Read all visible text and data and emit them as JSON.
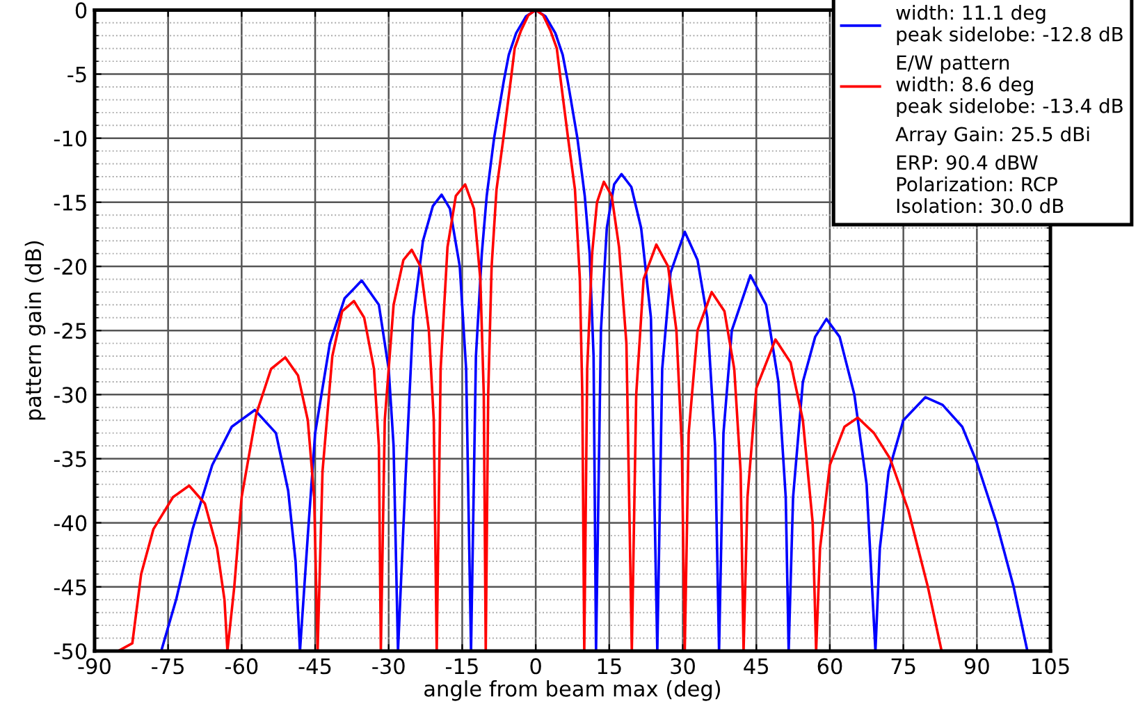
{
  "chart_data": {
    "type": "line",
    "xlabel": "angle from beam max (deg)",
    "ylabel": "pattern gain (dB)",
    "xlim": [
      -90,
      105
    ],
    "ylim": [
      -50,
      0
    ],
    "xticks": [
      -90,
      -75,
      -60,
      -45,
      -30,
      -15,
      0,
      15,
      30,
      45,
      60,
      75,
      90,
      105
    ],
    "yticks": [
      -50,
      -45,
      -40,
      -35,
      -30,
      -25,
      -20,
      -15,
      -10,
      -5,
      0
    ],
    "grid": true,
    "legend": "top right",
    "marker": "none",
    "line_style": "solid",
    "annotations": [
      "Array Gain: 25.5 dBi",
      "ERP: 90.4 dBW\nPolarization: RCP\nIsolation: 30.0 dB"
    ],
    "series": [
      {
        "name": "width: 11.1 deg\npeak sidelobe: -12.8 dB",
        "color": "#0000ff",
        "x": [
          -76.4,
          -73.3,
          -70,
          -66,
          -62,
          -57.3,
          -53,
          -50.5,
          -49,
          -48.1,
          -46.5,
          -45,
          -42,
          -39,
          -35.5,
          -32,
          -30,
          -29,
          -28.1,
          -26.5,
          -25,
          -23,
          -21,
          -19.2,
          -17.5,
          -15.5,
          -14.2,
          -13.2,
          -12.2,
          -11,
          -10,
          -8.5,
          -6.5,
          -5.5,
          -4,
          -2,
          0,
          2,
          4,
          5.5,
          6.5,
          8.5,
          10,
          11,
          11.8,
          12.3,
          13.3,
          14.5,
          16,
          17.5,
          19.5,
          21.5,
          23.5,
          24.8,
          25.8,
          27.5,
          30.4,
          33,
          35,
          36.6,
          37.4,
          38.3,
          40,
          43.8,
          47,
          49.5,
          51,
          51.6,
          52.5,
          54.5,
          57,
          59.3,
          62,
          65,
          67.5,
          69.3,
          70.2,
          72,
          75,
          79.5,
          83,
          87,
          90,
          94,
          97.5,
          100.3
        ],
        "values": [
          -50,
          -45.9,
          -40.5,
          -35.5,
          -32.5,
          -31.2,
          -33,
          -37.5,
          -43,
          -50,
          -41,
          -33,
          -26,
          -22.5,
          -21.1,
          -23,
          -28,
          -34,
          -50,
          -36,
          -24,
          -18,
          -15.3,
          -14.4,
          -15.5,
          -20,
          -28,
          -50,
          -27,
          -19,
          -14.5,
          -10,
          -5.5,
          -3.5,
          -1.8,
          -0.5,
          0,
          -0.5,
          -1.8,
          -3.5,
          -5.5,
          -10,
          -14.5,
          -19,
          -27,
          -50,
          -25,
          -17,
          -13.6,
          -12.8,
          -13.8,
          -17,
          -24,
          -50,
          -28,
          -20.5,
          -17.3,
          -19.5,
          -24,
          -34,
          -50,
          -33,
          -25,
          -20.7,
          -23,
          -29,
          -38,
          -50,
          -38,
          -29,
          -25.5,
          -24.1,
          -25.5,
          -30,
          -37,
          -50,
          -42,
          -36,
          -32,
          -30.2,
          -30.8,
          -32.5,
          -35.3,
          -40,
          -45,
          -50
        ]
      },
      {
        "name": "E/W pattern\nwidth: 8.6 deg\npeak sidelobe: -13.4 dB",
        "color": "#ff0000",
        "x": [
          -85.2,
          -82.3,
          -80.5,
          -78,
          -74,
          -70.7,
          -67.5,
          -65,
          -63.5,
          -62.9,
          -61.5,
          -60,
          -57,
          -54,
          -51.1,
          -48.5,
          -46.5,
          -45.2,
          -44.5,
          -43.5,
          -41.5,
          -39.5,
          -37.1,
          -35,
          -33,
          -32,
          -31.6,
          -30.8,
          -29,
          -27,
          -25.3,
          -23.5,
          -21.8,
          -20.8,
          -20.2,
          -19.4,
          -18,
          -16.3,
          -14.4,
          -12.6,
          -11.3,
          -10.6,
          -10.2,
          -9.7,
          -9,
          -8,
          -6.6,
          -5,
          -4.3,
          -3,
          -1.5,
          0,
          1.5,
          3,
          4.3,
          5,
          6.6,
          8,
          9,
          9.5,
          9.9,
          10.5,
          11.5,
          12.5,
          13.9,
          15.5,
          17,
          18.5,
          19.6,
          20.5,
          22,
          24.6,
          27,
          28.7,
          29.8,
          30.4,
          31.2,
          33,
          35.9,
          38.5,
          40.5,
          41.8,
          42.4,
          43.2,
          45,
          48.9,
          52,
          54.5,
          56.5,
          57.2,
          58,
          60,
          63,
          65.7,
          69,
          72.3,
          76,
          80,
          82.8
        ],
        "values": [
          -50,
          -49.4,
          -44,
          -40.5,
          -38,
          -37.1,
          -38.5,
          -42,
          -46,
          -50,
          -45,
          -38,
          -31.5,
          -28,
          -27.1,
          -28.5,
          -32,
          -38,
          -50,
          -36,
          -27,
          -23.5,
          -22.7,
          -24,
          -28,
          -34,
          -50,
          -32,
          -23,
          -19.5,
          -18.7,
          -20,
          -25,
          -32,
          -50,
          -28,
          -18.5,
          -14.5,
          -13.6,
          -15.5,
          -21,
          -30,
          -50,
          -30,
          -20,
          -14,
          -10,
          -5.2,
          -3,
          -1.6,
          -0.4,
          0,
          -0.4,
          -1.6,
          -3,
          -5.2,
          -10,
          -14,
          -21,
          -30,
          -50,
          -28,
          -19,
          -15,
          -13.4,
          -14.5,
          -18.5,
          -26,
          -50,
          -30,
          -21,
          -18.3,
          -20,
          -25,
          -34,
          -50,
          -33,
          -25,
          -22,
          -23.5,
          -28,
          -36,
          -50,
          -38,
          -29.5,
          -25.7,
          -27.5,
          -32,
          -40,
          -50,
          -42,
          -35.5,
          -32.5,
          -31.8,
          -33,
          -35,
          -39,
          -45,
          -50
        ]
      }
    ]
  }
}
